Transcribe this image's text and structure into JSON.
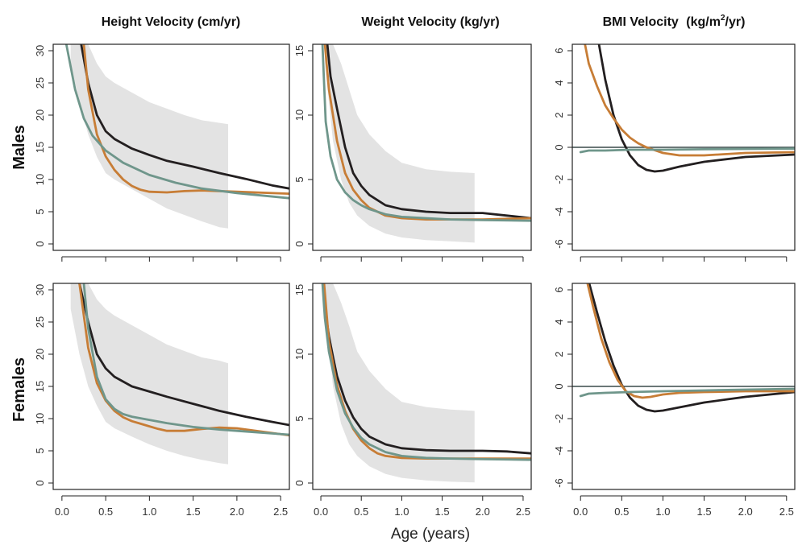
{
  "figure": {
    "xlabel": "Age (years)",
    "row_labels": [
      "Males",
      "Females"
    ]
  },
  "colors": {
    "band": "#e3e3e3",
    "black": "#231f20",
    "orange": "#c77d36",
    "teal": "#6f968b",
    "zeroline": "#3a4a4a",
    "axis": "#222222"
  },
  "chart_data": [
    {
      "type": "line",
      "title": "Height Velocity (cm/yr)",
      "row": "Males",
      "xlim": [
        -0.1,
        2.6
      ],
      "ylim": [
        -1,
        31
      ],
      "xticks": [
        "0.0",
        "0.5",
        "1.0",
        "1.5",
        "2.0",
        "2.5"
      ],
      "yticks": [
        "0",
        "5",
        "10",
        "15",
        "20",
        "25",
        "30"
      ],
      "band": {
        "x": [
          0.1,
          0.2,
          0.3,
          0.4,
          0.5,
          0.6,
          0.8,
          1.0,
          1.2,
          1.4,
          1.6,
          1.8,
          1.9
        ],
        "lower": [
          28,
          22,
          17,
          13.5,
          11,
          10,
          8.5,
          7,
          5.5,
          4.5,
          3.5,
          2.6,
          2.4
        ],
        "upper": [
          31,
          31,
          31,
          28,
          26,
          25,
          23.5,
          22,
          21,
          20,
          19.2,
          18.8,
          18.6
        ]
      },
      "series": [
        {
          "color": "black",
          "x": [
            0.22,
            0.3,
            0.4,
            0.5,
            0.6,
            0.8,
            1.0,
            1.2,
            1.5,
            1.8,
            2.1,
            2.4,
            2.6
          ],
          "y": [
            31,
            25,
            20,
            17.5,
            16.3,
            14.8,
            13.8,
            12.9,
            12,
            11,
            10.1,
            9.1,
            8.6
          ]
        },
        {
          "color": "orange",
          "x": [
            0.25,
            0.3,
            0.4,
            0.5,
            0.6,
            0.7,
            0.8,
            0.9,
            1.0,
            1.2,
            1.4,
            1.6,
            2.0,
            2.6
          ],
          "y": [
            31,
            24,
            17,
            13.6,
            11.5,
            10,
            9,
            8.4,
            8.1,
            8.0,
            8.2,
            8.3,
            8.1,
            7.8
          ]
        },
        {
          "color": "teal",
          "x": [
            0.05,
            0.15,
            0.25,
            0.35,
            0.5,
            0.7,
            1.0,
            1.3,
            1.6,
            2.0,
            2.6
          ],
          "y": [
            31,
            24,
            19.5,
            16.8,
            14.5,
            12.6,
            10.7,
            9.5,
            8.6,
            7.9,
            7.1
          ]
        }
      ]
    },
    {
      "type": "line",
      "title": "Weight Velocity (kg/yr)",
      "row": "Males",
      "xlim": [
        -0.1,
        2.6
      ],
      "ylim": [
        -0.5,
        15.5
      ],
      "xticks": [
        "0.0",
        "0.5",
        "1.0",
        "1.5",
        "2.0",
        "2.5"
      ],
      "yticks": [
        "0",
        "5",
        "10",
        "15"
      ],
      "band": {
        "x": [
          0.05,
          0.15,
          0.25,
          0.35,
          0.45,
          0.6,
          0.8,
          1.0,
          1.3,
          1.6,
          1.9
        ],
        "lower": [
          14,
          8,
          5,
          3.2,
          2.2,
          1.4,
          0.8,
          0.5,
          0.3,
          0.2,
          0.1
        ],
        "upper": [
          15.5,
          15.5,
          14,
          12,
          10,
          8.5,
          7.2,
          6.3,
          5.8,
          5.6,
          5.5
        ]
      },
      "series": [
        {
          "color": "black",
          "x": [
            0.08,
            0.12,
            0.2,
            0.3,
            0.4,
            0.5,
            0.6,
            0.8,
            1.0,
            1.3,
            1.6,
            2.0,
            2.3,
            2.6
          ],
          "y": [
            15.5,
            13,
            10.5,
            7.5,
            5.5,
            4.5,
            3.8,
            3.0,
            2.7,
            2.5,
            2.4,
            2.4,
            2.2,
            2.0
          ]
        },
        {
          "color": "orange",
          "x": [
            0.05,
            0.1,
            0.2,
            0.3,
            0.4,
            0.5,
            0.6,
            0.8,
            1.0,
            1.3,
            1.6,
            2.0,
            2.3,
            2.6
          ],
          "y": [
            15.5,
            12,
            8,
            5.5,
            4.2,
            3.4,
            2.8,
            2.2,
            2.0,
            1.9,
            1.9,
            1.9,
            1.95,
            2.0
          ]
        },
        {
          "color": "teal",
          "x": [
            0.02,
            0.06,
            0.12,
            0.2,
            0.3,
            0.4,
            0.5,
            0.6,
            0.8,
            1.0,
            1.3,
            1.6,
            2.0,
            2.6
          ],
          "y": [
            15.5,
            9.5,
            6.8,
            5,
            4.0,
            3.4,
            3.0,
            2.7,
            2.3,
            2.1,
            2.0,
            1.9,
            1.85,
            1.8
          ]
        }
      ]
    },
    {
      "type": "line",
      "title": "BMI Velocity",
      "title_unit": [
        "(kg/m",
        "2",
        "/yr)"
      ],
      "row": "Males",
      "xlim": [
        -0.1,
        2.6
      ],
      "ylim": [
        -6.4,
        6.4
      ],
      "xticks": [
        "0.0",
        "0.5",
        "1.0",
        "1.5",
        "2.0",
        "2.5"
      ],
      "yticks": [
        "6",
        "4",
        "2",
        "0",
        "-2",
        "-4",
        "-6"
      ],
      "zero_line": 0,
      "series": [
        {
          "color": "black",
          "x": [
            0.22,
            0.3,
            0.4,
            0.5,
            0.6,
            0.7,
            0.8,
            0.9,
            1.0,
            1.2,
            1.5,
            2.0,
            2.6
          ],
          "y": [
            6.5,
            4.2,
            2.0,
            0.5,
            -0.5,
            -1.1,
            -1.4,
            -1.5,
            -1.45,
            -1.2,
            -0.9,
            -0.6,
            -0.45
          ]
        },
        {
          "color": "orange",
          "x": [
            0.05,
            0.1,
            0.2,
            0.3,
            0.4,
            0.5,
            0.6,
            0.7,
            0.8,
            1.0,
            1.2,
            1.5,
            2.0,
            2.6
          ],
          "y": [
            6.5,
            5.2,
            3.8,
            2.6,
            1.8,
            1.1,
            0.6,
            0.25,
            0,
            -0.35,
            -0.5,
            -0.5,
            -0.35,
            -0.3
          ]
        },
        {
          "color": "teal",
          "x": [
            0.0,
            0.1,
            0.3,
            0.6,
            1.0,
            1.5,
            2.0,
            2.6
          ],
          "y": [
            -0.3,
            -0.2,
            -0.2,
            -0.15,
            -0.15,
            -0.12,
            -0.1,
            -0.08
          ]
        }
      ]
    },
    {
      "type": "line",
      "title": "",
      "row": "Females",
      "xlim": [
        -0.1,
        2.6
      ],
      "ylim": [
        -1,
        31
      ],
      "xticks": [
        "0.0",
        "0.5",
        "1.0",
        "1.5",
        "2.0",
        "2.5"
      ],
      "yticks": [
        "0",
        "5",
        "10",
        "15",
        "20",
        "25",
        "30"
      ],
      "band": {
        "x": [
          0.1,
          0.2,
          0.3,
          0.4,
          0.5,
          0.6,
          0.8,
          1.0,
          1.2,
          1.4,
          1.6,
          1.8,
          1.9
        ],
        "lower": [
          27,
          20,
          15,
          12,
          9.5,
          8.5,
          7.2,
          6,
          5,
          4.2,
          3.6,
          3.1,
          2.9
        ],
        "upper": [
          31,
          31,
          31,
          28.5,
          27,
          26,
          24.5,
          23,
          21.5,
          20.5,
          19.5,
          19,
          18.6
        ]
      },
      "series": [
        {
          "color": "black",
          "x": [
            0.2,
            0.3,
            0.4,
            0.5,
            0.6,
            0.8,
            1.0,
            1.2,
            1.5,
            1.8,
            2.1,
            2.4,
            2.6
          ],
          "y": [
            31,
            25,
            20,
            17.8,
            16.5,
            15,
            14.2,
            13.4,
            12.3,
            11.2,
            10.3,
            9.5,
            9.0
          ]
        },
        {
          "color": "orange",
          "x": [
            0.2,
            0.3,
            0.4,
            0.5,
            0.6,
            0.7,
            0.8,
            0.9,
            1.0,
            1.1,
            1.2,
            1.4,
            1.6,
            1.8,
            2.0,
            2.6
          ],
          "y": [
            31,
            21,
            15.5,
            12.8,
            11.2,
            10.2,
            9.6,
            9.2,
            8.8,
            8.4,
            8.1,
            8.1,
            8.4,
            8.6,
            8.5,
            7.4
          ]
        },
        {
          "color": "teal",
          "x": [
            0.25,
            0.3,
            0.4,
            0.5,
            0.6,
            0.7,
            0.8,
            1.0,
            1.2,
            1.5,
            1.8,
            2.0,
            2.6
          ],
          "y": [
            31,
            24,
            16.5,
            13,
            11.5,
            10.7,
            10.3,
            9.8,
            9.3,
            8.7,
            8.3,
            8.1,
            7.5
          ]
        }
      ]
    },
    {
      "type": "line",
      "title": "",
      "row": "Females",
      "xlim": [
        -0.1,
        2.6
      ],
      "ylim": [
        -0.5,
        15.5
      ],
      "xticks": [
        "0.0",
        "0.5",
        "1.0",
        "1.5",
        "2.0",
        "2.5"
      ],
      "yticks": [
        "0",
        "5",
        "10",
        "15"
      ],
      "band": {
        "x": [
          0.05,
          0.15,
          0.25,
          0.35,
          0.45,
          0.6,
          0.8,
          1.0,
          1.3,
          1.6,
          1.9
        ],
        "lower": [
          14,
          7.5,
          4.6,
          3.0,
          2.1,
          1.3,
          0.7,
          0.4,
          0.2,
          0.1,
          0.05
        ],
        "upper": [
          15.5,
          15.5,
          14,
          12.2,
          10.2,
          8.7,
          7.3,
          6.3,
          5.9,
          5.7,
          5.6
        ]
      },
      "series": [
        {
          "color": "black",
          "x": [
            0.06,
            0.1,
            0.15,
            0.2,
            0.3,
            0.4,
            0.5,
            0.6,
            0.8,
            1.0,
            1.3,
            1.6,
            2.0,
            2.3,
            2.6
          ],
          "y": [
            13.2,
            11.4,
            9.8,
            8.3,
            6.4,
            5.1,
            4.2,
            3.6,
            3.0,
            2.7,
            2.55,
            2.5,
            2.5,
            2.45,
            2.3
          ]
        },
        {
          "color": "orange",
          "x": [
            0.04,
            0.1,
            0.2,
            0.3,
            0.4,
            0.5,
            0.6,
            0.7,
            0.8,
            1.0,
            1.3,
            1.6,
            2.0,
            2.6
          ],
          "y": [
            15.5,
            11,
            7.6,
            5.6,
            4.2,
            3.3,
            2.7,
            2.3,
            2.1,
            1.95,
            1.9,
            1.9,
            1.9,
            1.9
          ]
        },
        {
          "color": "teal",
          "x": [
            0.02,
            0.05,
            0.1,
            0.2,
            0.3,
            0.4,
            0.5,
            0.6,
            0.8,
            1.0,
            1.3,
            1.6,
            2.0,
            2.6
          ],
          "y": [
            15.5,
            12.8,
            10.2,
            7.2,
            5.4,
            4.3,
            3.5,
            3.0,
            2.4,
            2.1,
            1.95,
            1.9,
            1.85,
            1.8
          ]
        }
      ]
    },
    {
      "type": "line",
      "title": "",
      "row": "Females",
      "xlim": [
        -0.1,
        2.6
      ],
      "ylim": [
        -6.4,
        6.4
      ],
      "xticks": [
        "0.0",
        "0.5",
        "1.0",
        "1.5",
        "2.0",
        "2.5"
      ],
      "yticks": [
        "6",
        "4",
        "2",
        "0",
        "-2",
        "-4",
        "-6"
      ],
      "zero_line": 0,
      "series": [
        {
          "color": "black",
          "x": [
            0.1,
            0.2,
            0.3,
            0.4,
            0.5,
            0.6,
            0.7,
            0.8,
            0.9,
            1.0,
            1.2,
            1.5,
            2.0,
            2.6
          ],
          "y": [
            6.5,
            4.6,
            2.8,
            1.3,
            0.1,
            -0.7,
            -1.2,
            -1.45,
            -1.55,
            -1.5,
            -1.3,
            -1.0,
            -0.65,
            -0.35
          ]
        },
        {
          "color": "orange",
          "x": [
            0.08,
            0.15,
            0.25,
            0.35,
            0.45,
            0.55,
            0.65,
            0.75,
            0.85,
            1.0,
            1.2,
            1.5,
            2.0,
            2.6
          ],
          "y": [
            6.5,
            5.0,
            3.0,
            1.5,
            0.4,
            -0.3,
            -0.6,
            -0.7,
            -0.65,
            -0.5,
            -0.4,
            -0.35,
            -0.3,
            -0.3
          ]
        },
        {
          "color": "teal",
          "x": [
            0.0,
            0.1,
            0.3,
            0.6,
            1.0,
            1.5,
            2.0,
            2.6
          ],
          "y": [
            -0.6,
            -0.45,
            -0.4,
            -0.35,
            -0.3,
            -0.25,
            -0.2,
            -0.15
          ]
        }
      ]
    }
  ]
}
